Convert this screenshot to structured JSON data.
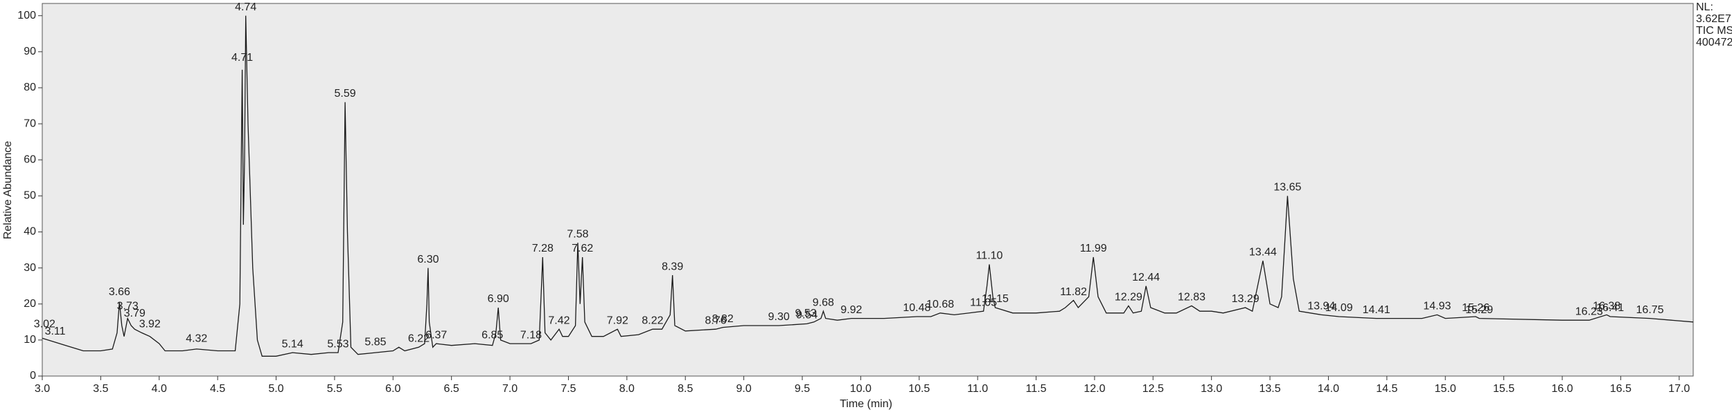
{
  "chart_data": {
    "type": "line",
    "x_label": "Time (min)",
    "y_label": "Relative Abundance",
    "info": [
      "NL:",
      "3.62E7",
      "TIC MS",
      "400472"
    ],
    "plot_background": "#ebebeb",
    "xlim": [
      3.0,
      17.12
    ],
    "ylim": [
      0,
      103.4
    ],
    "xticks": [
      {
        "value": 3,
        "label": "3.0"
      },
      3.5,
      {
        "value": 4,
        "label": "4.0"
      },
      4.5,
      {
        "value": 5,
        "label": "5.0"
      },
      5.5,
      {
        "value": 6,
        "label": "6.0"
      },
      6.5,
      {
        "value": 7,
        "label": "7.0"
      },
      7.5,
      {
        "value": 8,
        "label": "8.0"
      },
      8.5,
      {
        "value": 9,
        "label": "9.0"
      },
      9.5,
      {
        "value": 10,
        "label": "10.0"
      },
      10.5,
      {
        "value": 11,
        "label": "11.0"
      },
      11.5,
      {
        "value": 12,
        "label": "12.0"
      },
      12.5,
      {
        "value": 13,
        "label": "13.0"
      },
      13.5,
      {
        "value": 14,
        "label": "14.0"
      },
      14.5,
      {
        "value": 15,
        "label": "15.0"
      },
      15.5,
      {
        "value": 16,
        "label": "16.0"
      },
      16.5,
      {
        "value": 17,
        "label": "17.0"
      }
    ],
    "yticks": [
      0,
      10,
      20,
      30,
      40,
      50,
      60,
      70,
      80,
      90,
      100
    ],
    "series": [
      {
        "color": "#1a1a1a",
        "x": [
          3.0,
          3.05,
          3.1,
          3.2,
          3.3,
          3.35,
          3.5,
          3.6,
          3.64,
          3.66,
          3.68,
          3.7,
          3.73,
          3.76,
          3.79,
          3.85,
          3.92,
          4.0,
          4.05,
          4.2,
          4.32,
          4.5,
          4.65,
          4.69,
          4.71,
          4.72,
          4.73,
          4.74,
          4.76,
          4.8,
          4.84,
          4.88,
          5.0,
          5.14,
          5.3,
          5.45,
          5.53,
          5.57,
          5.59,
          5.61,
          5.64,
          5.7,
          5.85,
          6.0,
          6.05,
          6.1,
          6.22,
          6.27,
          6.29,
          6.3,
          6.31,
          6.34,
          6.37,
          6.5,
          6.7,
          6.85,
          6.88,
          6.9,
          6.92,
          7.0,
          7.18,
          7.25,
          7.27,
          7.28,
          7.3,
          7.35,
          7.42,
          7.45,
          7.5,
          7.56,
          7.58,
          7.6,
          7.62,
          7.64,
          7.7,
          7.8,
          7.92,
          7.95,
          8.1,
          8.22,
          8.3,
          8.37,
          8.39,
          8.41,
          8.5,
          8.76,
          8.82,
          9.0,
          9.3,
          9.54,
          9.6,
          9.66,
          9.68,
          9.7,
          9.8,
          9.92,
          10.2,
          10.48,
          10.6,
          10.68,
          10.8,
          11.05,
          11.08,
          11.1,
          11.13,
          11.15,
          11.3,
          11.5,
          11.7,
          11.75,
          11.82,
          11.86,
          11.95,
          11.99,
          12.03,
          12.1,
          12.25,
          12.29,
          12.33,
          12.4,
          12.44,
          12.48,
          12.6,
          12.7,
          12.83,
          12.9,
          13.0,
          13.1,
          13.29,
          13.35,
          13.44,
          13.5,
          13.57,
          13.6,
          13.65,
          13.7,
          13.75,
          13.94,
          14.09,
          14.41,
          14.8,
          14.93,
          15.0,
          15.26,
          15.29,
          16.0,
          16.23,
          16.38,
          16.41,
          16.75,
          17.12
        ],
        "values": [
          10.5,
          10,
          9.5,
          8.5,
          7.5,
          7,
          7,
          7.5,
          12,
          20.5,
          14,
          11,
          16,
          14,
          13,
          12,
          11,
          9,
          7,
          7,
          7.5,
          7,
          7,
          20,
          85,
          42,
          60,
          100,
          70,
          30,
          10,
          5.5,
          5.5,
          6.5,
          6,
          6.5,
          6.5,
          15,
          76,
          40,
          8,
          6,
          6.5,
          7,
          8,
          7,
          8,
          9,
          20,
          30,
          15,
          8,
          9,
          8.5,
          9,
          8.5,
          12,
          19,
          10,
          9,
          9,
          10,
          25,
          33,
          12,
          10,
          13,
          11,
          11,
          14,
          37,
          20,
          33,
          15,
          11,
          11,
          13,
          11,
          11.5,
          13,
          13,
          17,
          28,
          14,
          12.5,
          13,
          13.5,
          14,
          14,
          14.5,
          15,
          16,
          18,
          16,
          15.5,
          16,
          16,
          16.5,
          16.5,
          17.5,
          17,
          18,
          25,
          31,
          22,
          19,
          17.5,
          17.5,
          18,
          19,
          21,
          19,
          22,
          33,
          22,
          17.5,
          17.5,
          19.5,
          17.5,
          18,
          25,
          19,
          17.5,
          17.5,
          19.5,
          18,
          18,
          17.5,
          19,
          18,
          32,
          20,
          19,
          22,
          50,
          27,
          18,
          17,
          16.5,
          16,
          16,
          17,
          16,
          16.5,
          16,
          15.5,
          15.5,
          17,
          16.5,
          16,
          15
        ]
      }
    ],
    "annotations": [
      {
        "x": 3.02,
        "y": 12,
        "label": "3.02"
      },
      {
        "x": 3.11,
        "y": 10,
        "label": "3.11"
      },
      {
        "x": 3.66,
        "y": 21,
        "label": "3.66"
      },
      {
        "x": 3.73,
        "y": 17,
        "label": "3.73"
      },
      {
        "x": 3.79,
        "y": 15,
        "label": "3.79"
      },
      {
        "x": 3.92,
        "y": 12,
        "label": "3.92"
      },
      {
        "x": 4.32,
        "y": 8,
        "label": "4.32"
      },
      {
        "x": 4.71,
        "y": 86,
        "label": "4.71"
      },
      {
        "x": 4.74,
        "y": 100,
        "label": "4.74"
      },
      {
        "x": 5.14,
        "y": 6.5,
        "label": "5.14"
      },
      {
        "x": 5.53,
        "y": 6.5,
        "label": "5.53"
      },
      {
        "x": 5.59,
        "y": 76,
        "label": "5.59"
      },
      {
        "x": 5.85,
        "y": 7,
        "label": "5.85"
      },
      {
        "x": 6.22,
        "y": 8,
        "label": "6.22"
      },
      {
        "x": 6.3,
        "y": 30,
        "label": "6.30"
      },
      {
        "x": 6.37,
        "y": 9,
        "label": "6.37"
      },
      {
        "x": 6.85,
        "y": 9,
        "label": "6.85"
      },
      {
        "x": 6.9,
        "y": 19,
        "label": "6.90"
      },
      {
        "x": 7.18,
        "y": 9,
        "label": "7.18"
      },
      {
        "x": 7.28,
        "y": 33,
        "label": "7.28"
      },
      {
        "x": 7.42,
        "y": 13,
        "label": "7.42"
      },
      {
        "x": 7.58,
        "y": 37,
        "label": "7.58"
      },
      {
        "x": 7.62,
        "y": 33,
        "label": "7.62"
      },
      {
        "x": 7.92,
        "y": 13,
        "label": "7.92"
      },
      {
        "x": 8.22,
        "y": 13,
        "label": "8.22"
      },
      {
        "x": 8.39,
        "y": 28,
        "label": "8.39"
      },
      {
        "x": 8.76,
        "y": 13,
        "label": "8.76"
      },
      {
        "x": 8.82,
        "y": 13.5,
        "label": "8.82"
      },
      {
        "x": 9.3,
        "y": 14,
        "label": "9.30"
      },
      {
        "x": 9.54,
        "y": 14.5,
        "label": "9.54"
      },
      {
        "x": 9.53,
        "y": 15,
        "label": "9.53"
      },
      {
        "x": 9.68,
        "y": 18,
        "label": "9.68"
      },
      {
        "x": 9.92,
        "y": 16,
        "label": "9.92"
      },
      {
        "x": 10.48,
        "y": 16.5,
        "label": "10.48"
      },
      {
        "x": 10.68,
        "y": 17.5,
        "label": "10.68"
      },
      {
        "x": 11.05,
        "y": 18,
        "label": "11.05"
      },
      {
        "x": 11.1,
        "y": 31,
        "label": "11.10"
      },
      {
        "x": 11.15,
        "y": 19,
        "label": "11.15"
      },
      {
        "x": 11.82,
        "y": 21,
        "label": "11.82"
      },
      {
        "x": 11.99,
        "y": 33,
        "label": "11.99"
      },
      {
        "x": 12.29,
        "y": 19.5,
        "label": "12.29"
      },
      {
        "x": 12.44,
        "y": 25,
        "label": "12.44"
      },
      {
        "x": 12.83,
        "y": 19.5,
        "label": "12.83"
      },
      {
        "x": 13.29,
        "y": 19,
        "label": "13.29"
      },
      {
        "x": 13.44,
        "y": 32,
        "label": "13.44"
      },
      {
        "x": 13.65,
        "y": 50,
        "label": "13.65"
      },
      {
        "x": 13.94,
        "y": 17,
        "label": "13.94"
      },
      {
        "x": 14.09,
        "y": 16.5,
        "label": "14.09"
      },
      {
        "x": 14.41,
        "y": 16,
        "label": "14.41"
      },
      {
        "x": 14.93,
        "y": 17,
        "label": "14.93"
      },
      {
        "x": 15.26,
        "y": 16.5,
        "label": "15.26"
      },
      {
        "x": 15.29,
        "y": 16,
        "label": "15.29"
      },
      {
        "x": 16.23,
        "y": 15.5,
        "label": "16.23"
      },
      {
        "x": 16.38,
        "y": 17,
        "label": "16.38"
      },
      {
        "x": 16.41,
        "y": 16.5,
        "label": "16.41"
      },
      {
        "x": 16.75,
        "y": 16,
        "label": "16.75"
      }
    ]
  }
}
